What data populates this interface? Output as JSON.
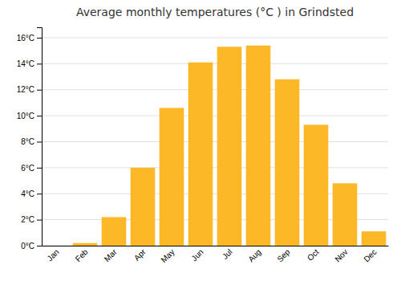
{
  "chart_data": {
    "type": "bar",
    "title": "Average monthly temperatures (°C ) in Grindsted",
    "categories": [
      "Jan",
      "Feb",
      "Mar",
      "Apr",
      "May",
      "Jun",
      "Jul",
      "Aug",
      "Sep",
      "Oct",
      "Nov",
      "Dec"
    ],
    "values": [
      0.0,
      0.2,
      2.2,
      6.0,
      10.6,
      14.1,
      15.3,
      15.4,
      12.8,
      9.3,
      4.8,
      1.1
    ],
    "color": "#FDB827",
    "ylim": [
      0,
      16.8
    ],
    "yticks": [
      {
        "value": 0,
        "label": "0°C"
      },
      {
        "value": 2,
        "label": "2°C"
      },
      {
        "value": 4,
        "label": "4°C"
      },
      {
        "value": 6,
        "label": "6°C"
      },
      {
        "value": 8,
        "label": "8°C"
      },
      {
        "value": 10,
        "label": "10°C"
      },
      {
        "value": 12,
        "label": "12°C"
      },
      {
        "value": 14,
        "label": "14°C"
      },
      {
        "value": 16,
        "label": "16°C"
      }
    ],
    "grid": true
  }
}
